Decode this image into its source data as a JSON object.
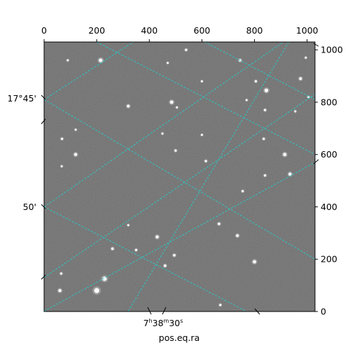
{
  "chart_data": {
    "type": "scatter",
    "title": "",
    "xlabel": "pos.eq.ra",
    "ylabel": "",
    "pixel_axes": {
      "x_ticks": [
        0,
        200,
        400,
        600,
        800,
        1000
      ],
      "x_tick_labels": [
        "0",
        "200",
        "400",
        "600",
        "800",
        "1000"
      ],
      "y_ticks": [
        0,
        200,
        400,
        600,
        800,
        1000
      ],
      "y_tick_labels": [
        "0",
        "200",
        "400",
        "600",
        "800",
        "1000"
      ],
      "xlim": [
        0,
        1030
      ],
      "ylim": [
        0,
        1030
      ]
    },
    "world_axes": {
      "ra_tick_label": {
        "h": "7",
        "m": "38",
        "s": "30"
      },
      "dec_tick_labels": [
        "17°45'",
        "50'"
      ]
    },
    "grid": {
      "on": true,
      "color": "#2ec4c4",
      "lines": [
        {
          "from": [
            200,
            1030
          ],
          "to": [
            1030,
            600
          ]
        },
        {
          "from": [
            610,
            1030
          ],
          "to": [
            1030,
            810
          ]
        },
        {
          "from": [
            0,
            810
          ],
          "to": [
            340,
            1030
          ]
        },
        {
          "from": [
            0,
            400
          ],
          "to": [
            910,
            1030
          ]
        },
        {
          "from": [
            0,
            130
          ],
          "to": [
            1030,
            830
          ]
        },
        {
          "from": [
            0,
            1
          ],
          "to": [
            1030,
            570
          ]
        },
        {
          "from": [
            0,
            400
          ],
          "to": [
            770,
            0
          ]
        },
        {
          "from": [
            0,
            810
          ],
          "to": [
            1030,
            200
          ]
        },
        {
          "from": [
            320,
            1
          ],
          "to": [
            930,
            1030
          ]
        }
      ]
    },
    "image": {
      "background": "#6e6e6e",
      "stars": [
        {
          "x": 215,
          "y": 960,
          "r": 2.6
        },
        {
          "x": 540,
          "y": 1000,
          "r": 1.6
        },
        {
          "x": 745,
          "y": 960,
          "r": 1.8
        },
        {
          "x": 470,
          "y": 950,
          "r": 1.4
        },
        {
          "x": 805,
          "y": 880,
          "r": 1.6
        },
        {
          "x": 845,
          "y": 845,
          "r": 2.6
        },
        {
          "x": 975,
          "y": 890,
          "r": 2.0
        },
        {
          "x": 1005,
          "y": 820,
          "r": 1.4
        },
        {
          "x": 485,
          "y": 800,
          "r": 2.4
        },
        {
          "x": 320,
          "y": 785,
          "r": 2.0
        },
        {
          "x": 505,
          "y": 780,
          "r": 1.4
        },
        {
          "x": 770,
          "y": 808,
          "r": 1.4
        },
        {
          "x": 840,
          "y": 770,
          "r": 1.6
        },
        {
          "x": 955,
          "y": 765,
          "r": 1.4
        },
        {
          "x": 120,
          "y": 695,
          "r": 1.4
        },
        {
          "x": 68,
          "y": 660,
          "r": 1.6
        },
        {
          "x": 450,
          "y": 680,
          "r": 1.4
        },
        {
          "x": 600,
          "y": 675,
          "r": 1.4
        },
        {
          "x": 835,
          "y": 660,
          "r": 1.6
        },
        {
          "x": 120,
          "y": 600,
          "r": 2.2
        },
        {
          "x": 500,
          "y": 615,
          "r": 1.6
        },
        {
          "x": 615,
          "y": 575,
          "r": 1.6
        },
        {
          "x": 915,
          "y": 600,
          "r": 2.4
        },
        {
          "x": 67,
          "y": 555,
          "r": 1.4
        },
        {
          "x": 840,
          "y": 520,
          "r": 1.6
        },
        {
          "x": 935,
          "y": 525,
          "r": 2.2
        },
        {
          "x": 755,
          "y": 460,
          "r": 1.6
        },
        {
          "x": 665,
          "y": 335,
          "r": 1.8
        },
        {
          "x": 735,
          "y": 290,
          "r": 2.0
        },
        {
          "x": 430,
          "y": 285,
          "r": 2.2
        },
        {
          "x": 260,
          "y": 240,
          "r": 1.8
        },
        {
          "x": 350,
          "y": 235,
          "r": 1.6
        },
        {
          "x": 495,
          "y": 215,
          "r": 1.8
        },
        {
          "x": 800,
          "y": 190,
          "r": 2.4
        },
        {
          "x": 460,
          "y": 175,
          "r": 1.8
        },
        {
          "x": 230,
          "y": 125,
          "r": 3.0
        },
        {
          "x": 200,
          "y": 80,
          "r": 3.6
        },
        {
          "x": 60,
          "y": 80,
          "r": 2.2
        },
        {
          "x": 65,
          "y": 145,
          "r": 1.6
        },
        {
          "x": 670,
          "y": 25,
          "r": 1.6
        },
        {
          "x": 320,
          "y": 330,
          "r": 1.4
        },
        {
          "x": 90,
          "y": 960,
          "r": 1.4
        },
        {
          "x": 600,
          "y": 880,
          "r": 1.4
        },
        {
          "x": 995,
          "y": 970,
          "r": 1.4
        }
      ]
    }
  }
}
